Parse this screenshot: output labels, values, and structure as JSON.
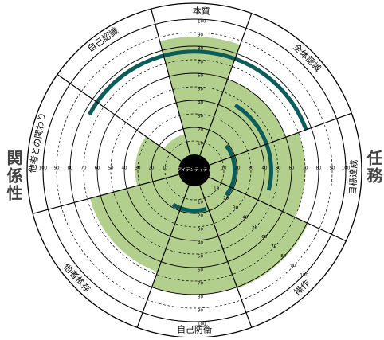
{
  "diagram": {
    "center_label": "アイデンティティ",
    "side_labels": {
      "left": "関係性",
      "right": "任務"
    },
    "sectors": [
      {
        "label": "本質"
      },
      {
        "label": "全体認識"
      },
      {
        "label": "目標達成"
      },
      {
        "label": "操作"
      },
      {
        "label": "自己防衛"
      },
      {
        "label": "他者依存"
      },
      {
        "label": "他者との関わり"
      },
      {
        "label": "自己認識"
      }
    ],
    "scale_values": [
      10,
      20,
      30,
      40,
      50,
      60,
      70,
      80,
      90,
      100
    ],
    "horizontal_axis_ticks": [
      {
        "text": "100",
        "value": -100
      },
      {
        "text": "90",
        "value": -90
      },
      {
        "text": "80",
        "value": -80
      },
      {
        "text": "70",
        "value": -70
      },
      {
        "text": "60",
        "value": -60
      },
      {
        "text": "50",
        "value": -50
      },
      {
        "text": "40",
        "value": -40
      },
      {
        "text": "30",
        "value": -30
      },
      {
        "text": "20",
        "value": -20
      },
      {
        "text": "10",
        "value": -10
      },
      {
        "text": "10",
        "value": 10
      },
      {
        "text": "20",
        "value": 20
      },
      {
        "text": "30",
        "value": 30
      },
      {
        "text": "40",
        "value": 40
      },
      {
        "text": "50",
        "value": 50
      },
      {
        "text": "60",
        "value": 60
      },
      {
        "text": "70",
        "value": 70
      },
      {
        "text": "80",
        "value": 80
      },
      {
        "text": "90",
        "value": 90
      },
      {
        "text": "100",
        "value": 100
      }
    ],
    "filled_areas": [
      {
        "from_deg": 345,
        "to_deg": 380,
        "value": 87
      },
      {
        "from_deg": 20,
        "to_deg": 70,
        "value": 60
      },
      {
        "from_deg": 70,
        "to_deg": 115,
        "value": 70
      },
      {
        "from_deg": 115,
        "to_deg": 160,
        "value": 81
      },
      {
        "from_deg": 160,
        "to_deg": 200,
        "value": 80
      },
      {
        "from_deg": 200,
        "to_deg": 255,
        "value": 68
      },
      {
        "from_deg": 255,
        "to_deg": 305,
        "value": 32
      },
      {
        "from_deg": 305,
        "to_deg": 345,
        "value": 16
      }
    ],
    "arcs": [
      {
        "from_deg": 298,
        "to_deg": 430,
        "value": 76
      },
      {
        "from_deg": 32,
        "to_deg": 105,
        "value": 45
      },
      {
        "from_deg": 52,
        "to_deg": 128,
        "value": 18
      },
      {
        "from_deg": 163,
        "to_deg": 212,
        "value": 18
      }
    ],
    "colors": {
      "fill": "#b3cf8e",
      "arc": "#0c5d5a",
      "line": "#000000",
      "grid": "#000000",
      "center": "#000000",
      "side_label": "#444444"
    }
  }
}
